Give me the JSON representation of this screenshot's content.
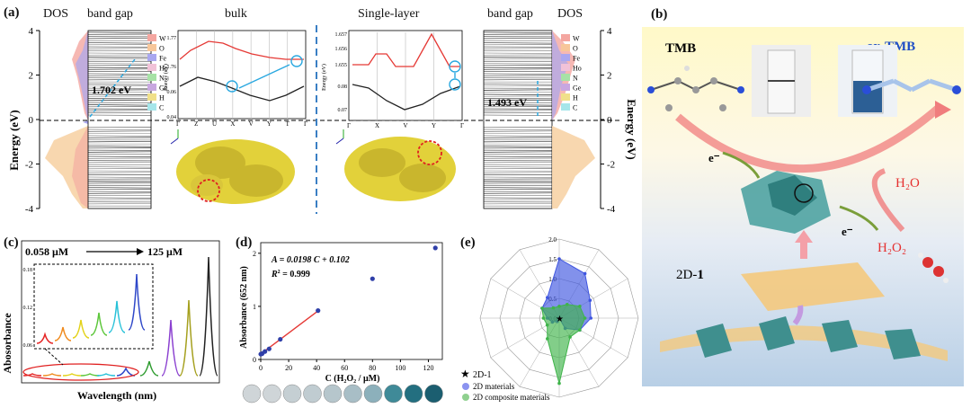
{
  "panel_a": {
    "label": "(a)",
    "left_headers": [
      "DOS",
      "band gap"
    ],
    "bulk_header": "bulk",
    "single_header": "Single-layer",
    "right_headers": [
      "band gap",
      "DOS"
    ],
    "ylabel": "Energy (eV)",
    "ylabel_right": "Energy (eV)",
    "y_ticks": [
      "4",
      "2",
      "0",
      "-2",
      "-4"
    ],
    "gap_bulk": "1.702 eV",
    "gap_single": "1.493 eV",
    "legend": [
      "W",
      "O",
      "Fe",
      "Ho",
      "N",
      "Ge",
      "H",
      "C"
    ],
    "legend_colors": [
      "#f4a6a0",
      "#f7c69a",
      "#a9a7f0",
      "#f1c2d8",
      "#a7e2a6",
      "#c8a7e0",
      "#f0e08a",
      "#a6e6ea"
    ],
    "bulk_plot": {
      "ylabel": "Energy (eV)",
      "y_ticks": [
        "1.77",
        "1.76",
        "0.06",
        "0.04"
      ],
      "k_path": [
        "Γ",
        "Z",
        "U",
        "X",
        "V",
        "Y",
        "T",
        "Γ"
      ]
    },
    "single_plot": {
      "ylabel": "Energy (eV)",
      "y_ticks": [
        "1.657",
        "1.656",
        "1.655",
        "0.08",
        "0.07"
      ],
      "k_path": [
        "Γ",
        "X",
        "V",
        "Y",
        "Γ"
      ]
    }
  },
  "panel_b": {
    "label": "(b)",
    "tmb": "TMB",
    "ox_tmb": "ox-TMB",
    "electron": "e⁻",
    "h2o": "H₂O",
    "h2o2": "H₂O₂",
    "material": "2D-",
    "material_num": "1"
  },
  "panel_c": {
    "label": "(c)",
    "range_start": "0.058 μM",
    "range_end": "125 μM",
    "ylabel": "Abosorbance",
    "xlabel": "Wavelength (nm)",
    "inset_ticks": [
      "0.18",
      "0.12",
      "0.06"
    ],
    "peak_colors": [
      "#e52424",
      "#f08b1f",
      "#e3d21a",
      "#5cc63a",
      "#27c1d8",
      "#2f48c9",
      "#2e9b2f",
      "#8a3fd0",
      "#a5a01e",
      "#222222"
    ]
  },
  "panel_d": {
    "label": "(d)",
    "equation_lhs": "A = 0.0198 ",
    "equation_var": "C",
    "equation_rhs": " + 0.102",
    "r2_label": "R",
    "r2_value": " = 0.999",
    "ylabel": "Absorbance (652 nm)",
    "xlabel": "C (H₂O₂ / μM)",
    "x_ticks": [
      "0",
      "20",
      "40",
      "60",
      "80",
      "100",
      "120"
    ],
    "y_ticks": [
      "0",
      "1",
      "2"
    ]
  },
  "panel_e": {
    "label": "(e)",
    "ticks": [
      "2.0",
      "1.5",
      "1.0",
      "0.5",
      "0.0"
    ],
    "legend": [
      "2D-1",
      "2D materials",
      "2D composite materials"
    ]
  },
  "chart_data": [
    {
      "type": "scatter",
      "title": "",
      "xlabel": "C (H2O2 / μM)",
      "ylabel": "Absorbance (652 nm)",
      "xlim": [
        0,
        130
      ],
      "ylim": [
        0,
        2.2
      ],
      "x": [
        0.058,
        1,
        3,
        6,
        14,
        41,
        80,
        125
      ],
      "y": [
        0.1,
        0.11,
        0.15,
        0.2,
        0.38,
        0.92,
        1.52,
        2.1
      ],
      "fit": {
        "slope": 0.0198,
        "intercept": 0.102,
        "x_range": [
          0,
          42
        ]
      }
    },
    {
      "type": "radar",
      "axes": 12,
      "rmax": 2.0,
      "ticks": [
        0.0,
        0.5,
        1.0,
        1.5,
        2.0
      ],
      "series": [
        {
          "name": "2D materials",
          "color": "#3f56e0",
          "values": [
            1.5,
            1.3,
            0.9,
            0.8,
            0.6,
            0.3,
            0.0,
            0.1,
            0.2,
            0.3,
            0.5,
            0.6
          ]
        },
        {
          "name": "2D composite materials",
          "color": "#3fb44a",
          "values": [
            0.3,
            0.4,
            0.6,
            0.65,
            0.6,
            0.55,
            1.65,
            0.6,
            0.35,
            0.4,
            0.5,
            0.3
          ]
        }
      ]
    }
  ]
}
